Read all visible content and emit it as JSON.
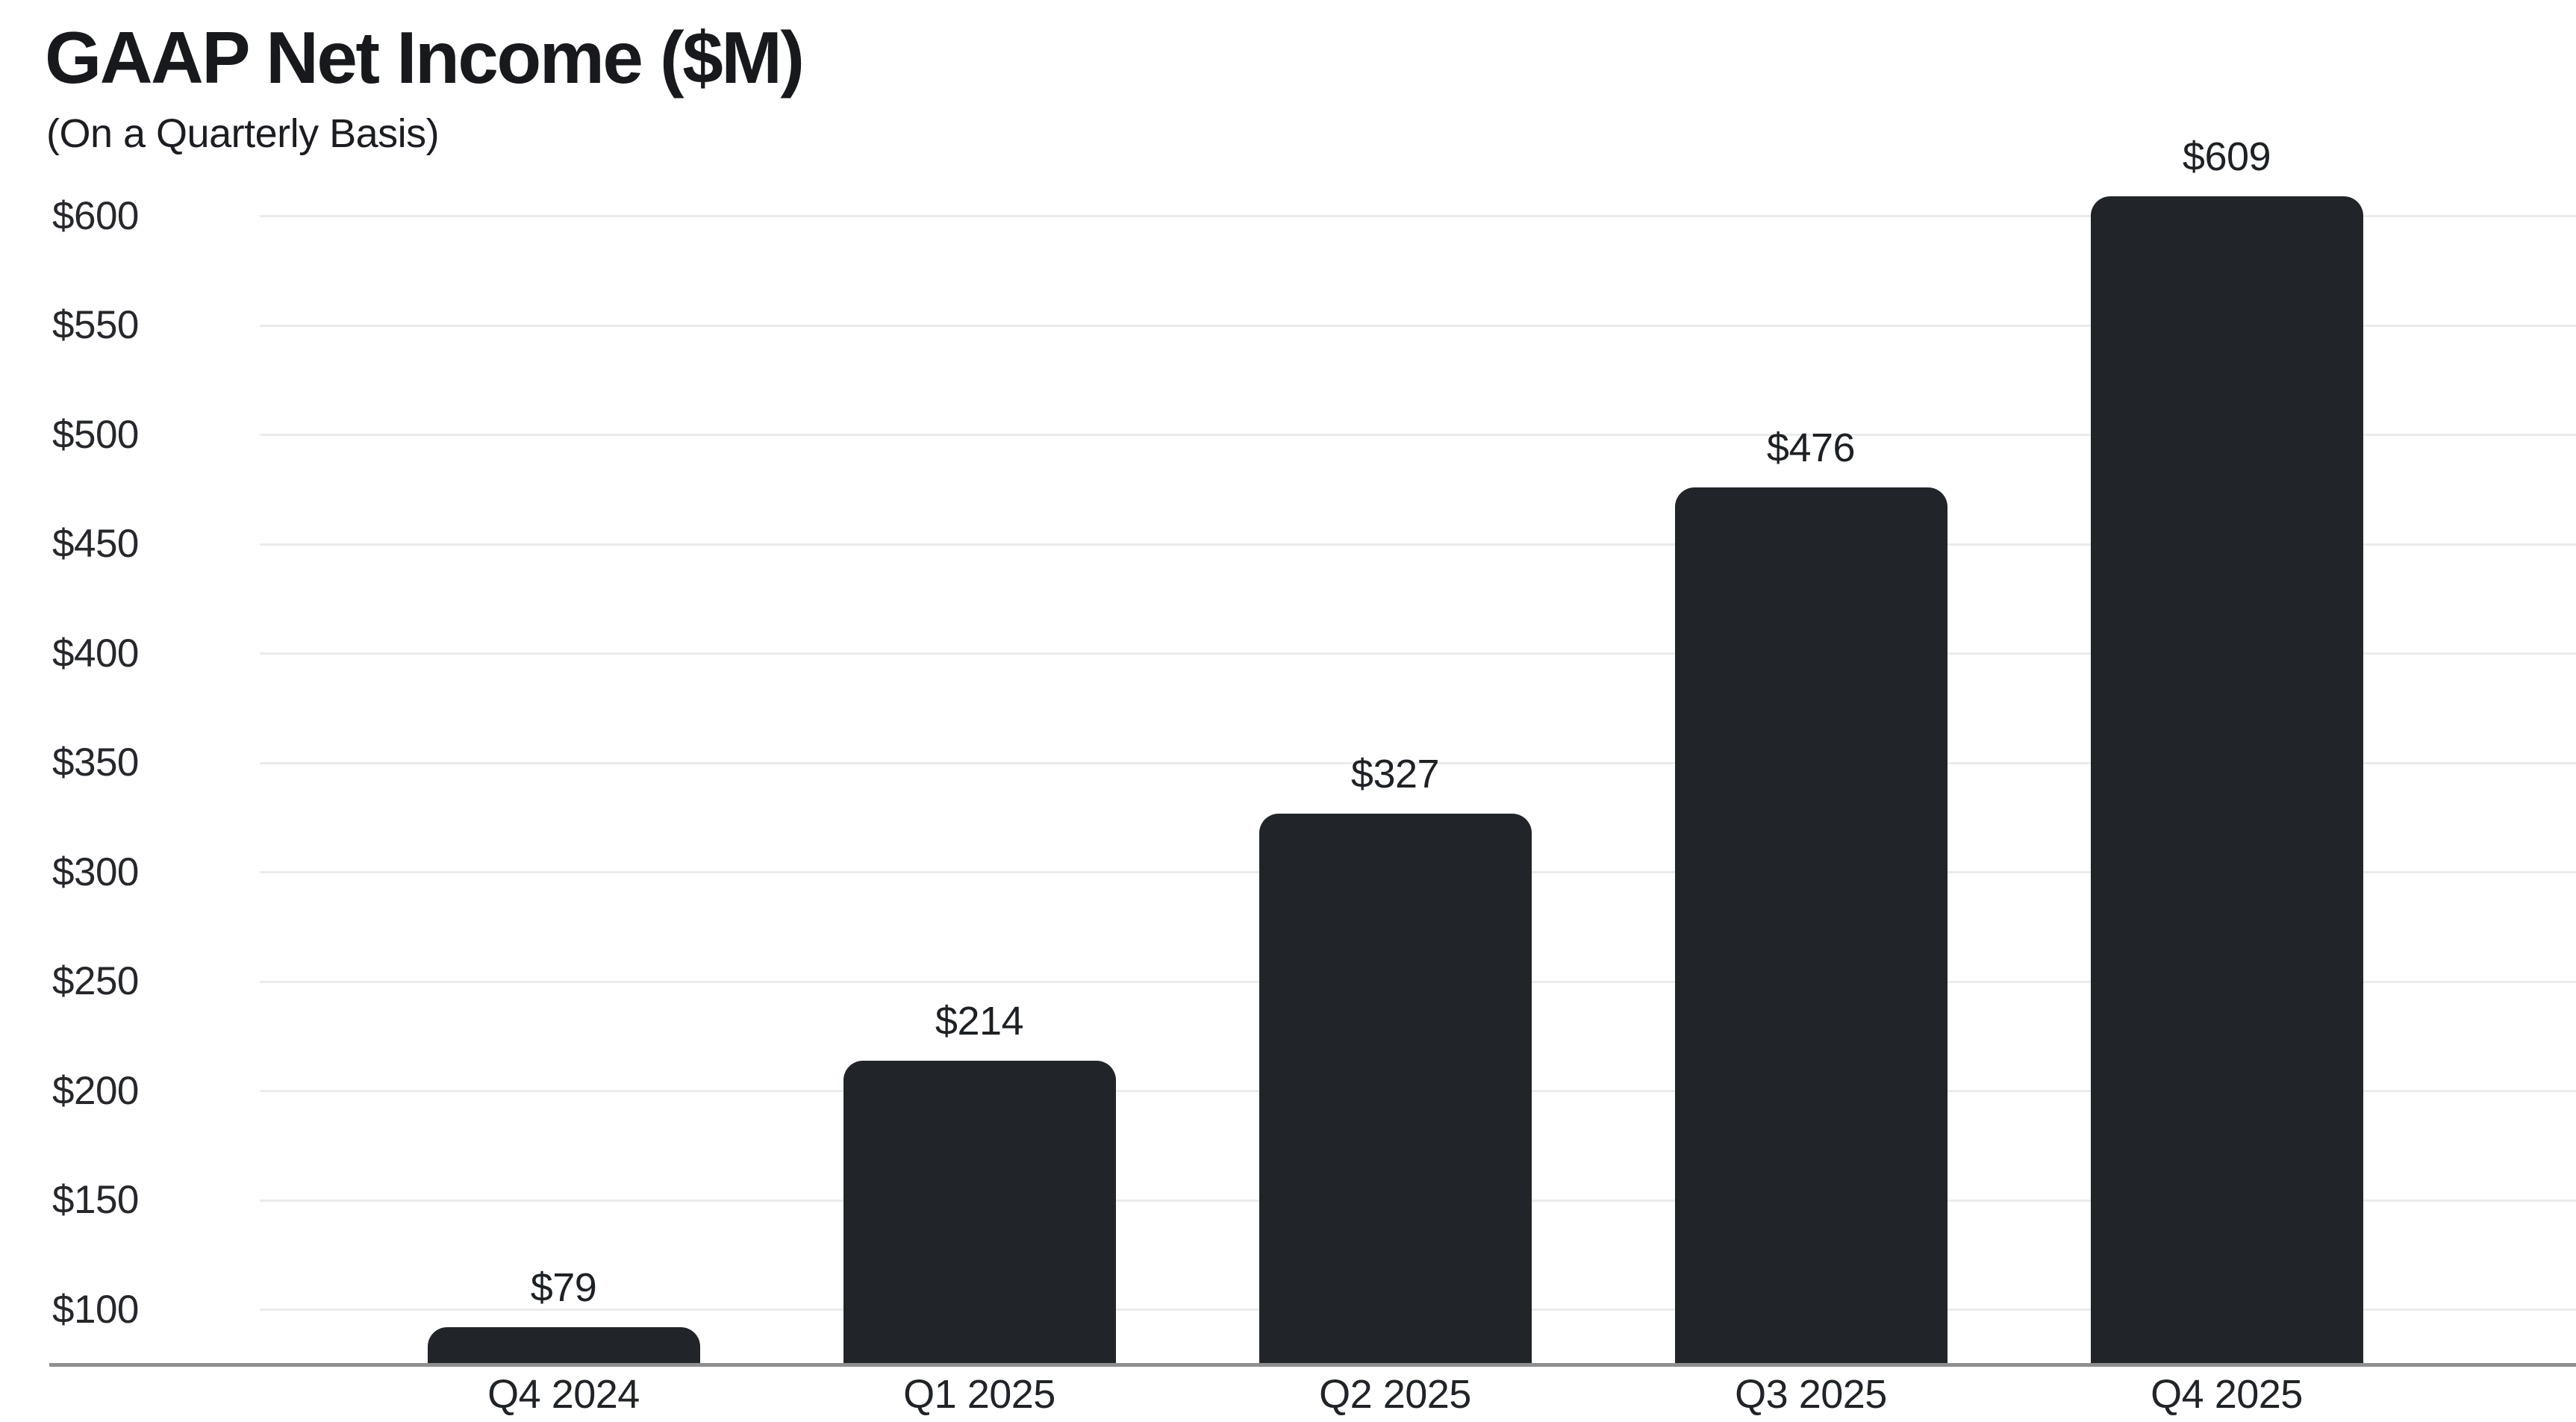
{
  "header": {
    "title": "GAAP Net Income ($M)",
    "subtitle": "(On a Quarterly Basis)"
  },
  "chart_data": {
    "type": "bar",
    "title": "GAAP Net Income ($M)",
    "subtitle": "(On a Quarterly Basis)",
    "categories": [
      "Q4 2024",
      "Q1 2025",
      "Q2 2025",
      "Q3 2025",
      "Q4 2025"
    ],
    "values": [
      79,
      214,
      327,
      476,
      609
    ],
    "value_labels": [
      "$79",
      "$214",
      "$327",
      "$476",
      "$609"
    ],
    "series_name": "GAAP Net Income",
    "unit": "$M (USD millions)",
    "xlabel": "",
    "ylabel": "",
    "y_axis": {
      "ticks": [
        100,
        150,
        200,
        250,
        300,
        350,
        400,
        450,
        500,
        550,
        600
      ],
      "tick_labels": [
        "$100",
        "$150",
        "$200",
        "$250",
        "$300",
        "$350",
        "$400",
        "$450",
        "$500",
        "$550",
        "$600"
      ],
      "axis_min": 75,
      "axis_max": 620,
      "tick_step": 50
    },
    "grid": "horizontal-only",
    "legend": "none",
    "data_labels": "above-bars",
    "colors": {
      "background": "#ffffff",
      "bar": "#212529",
      "gridline": "#ebebeb",
      "axis_line": "#8f8f8f",
      "title_text": "#17191d",
      "label_text": "#1e2126"
    }
  }
}
